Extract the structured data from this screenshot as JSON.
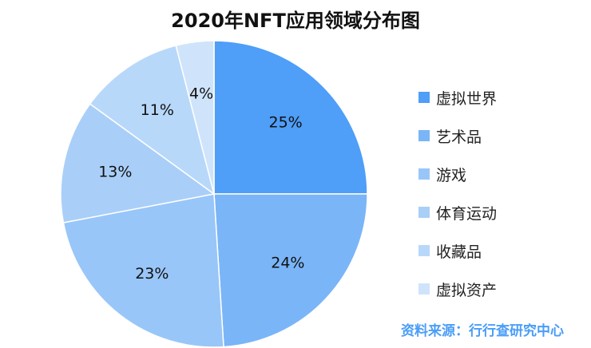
{
  "chart_data": {
    "type": "pie",
    "title": "2020年NFT应用领域分布图",
    "categories": [
      "虚拟世界",
      "艺术品",
      "游戏",
      "体育运动",
      "收藏品",
      "虚拟资产"
    ],
    "values": [
      25,
      24,
      23,
      13,
      11,
      4
    ],
    "value_labels": [
      "25%",
      "24%",
      "23%",
      "13%",
      "11%",
      "4%"
    ],
    "colors": [
      "#4f9ef8",
      "#7ab5f8",
      "#99c6f8",
      "#a9cff8",
      "#b8d8fa",
      "#cfe4fb"
    ],
    "legend_position": "right"
  },
  "source": "资料来源：行行查研究中心"
}
